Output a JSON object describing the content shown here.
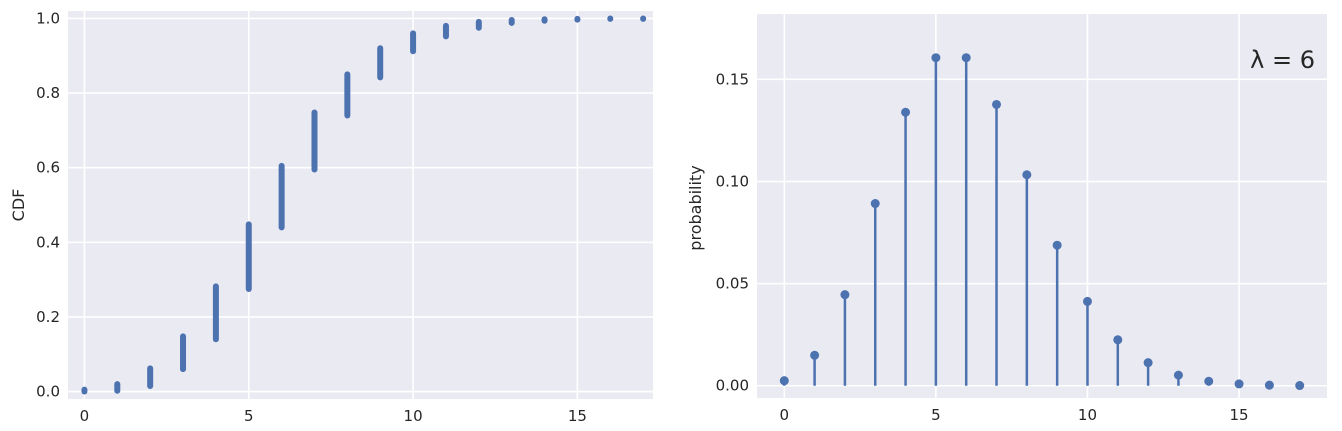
{
  "chart_data": [
    {
      "type": "scatter",
      "xlabel": "",
      "ylabel": "CDF",
      "xlim": [
        -0.5,
        17.3
      ],
      "ylim": [
        -0.02,
        1.02
      ],
      "xticks": [
        "0",
        "5",
        "10",
        "15"
      ],
      "yticks": [
        "0.0",
        "0.2",
        "0.4",
        "0.6",
        "0.8",
        "1.0"
      ],
      "grid": true,
      "series": [
        {
          "color": "#4c72b0",
          "x": [
            0,
            1,
            2,
            3,
            4,
            5,
            6,
            7,
            8,
            9,
            10,
            11,
            12,
            13,
            14,
            15,
            16,
            17
          ],
          "cdf_low": [
            0.0,
            0.002,
            0.015,
            0.06,
            0.14,
            0.275,
            0.44,
            0.595,
            0.74,
            0.842,
            0.912,
            0.952,
            0.975,
            0.988,
            0.994,
            0.997,
            0.999,
            0.999
          ],
          "cdf_high": [
            0.005,
            0.02,
            0.062,
            0.148,
            0.282,
            0.448,
            0.605,
            0.748,
            0.85,
            0.92,
            0.96,
            0.98,
            0.991,
            0.996,
            0.998,
            0.999,
            1.0,
            1.0
          ]
        }
      ]
    },
    {
      "type": "bar",
      "subtype": "stem",
      "xlabel": "",
      "ylabel": "probability",
      "annotation": "λ = 6",
      "xlim": [
        -0.9,
        17.9
      ],
      "ylim": [
        -0.006,
        0.182
      ],
      "xticks": [
        "0",
        "5",
        "10",
        "15"
      ],
      "yticks": [
        "0.00",
        "0.05",
        "0.10",
        "0.15"
      ],
      "grid": true,
      "series": [
        {
          "color": "#4c72b0",
          "x": [
            0,
            1,
            2,
            3,
            4,
            5,
            6,
            7,
            8,
            9,
            10,
            11,
            12,
            13,
            14,
            15,
            16,
            17
          ],
          "values": [
            0.0025,
            0.0149,
            0.0446,
            0.0892,
            0.1339,
            0.1606,
            0.1606,
            0.1377,
            0.1033,
            0.0688,
            0.0413,
            0.0225,
            0.0113,
            0.0052,
            0.0022,
            0.0009,
            0.0003,
            0.0001
          ]
        }
      ]
    }
  ]
}
